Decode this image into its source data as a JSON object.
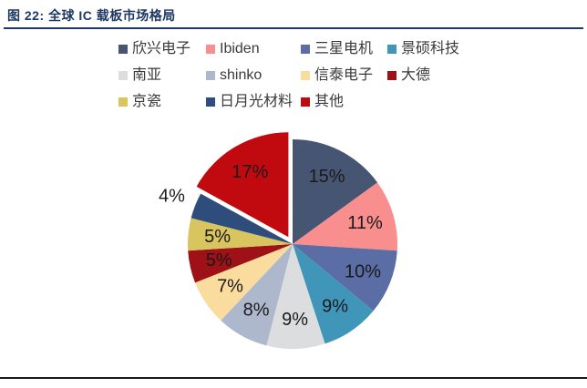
{
  "header": {
    "title": "图 22:  全球 IC 载板市场格局"
  },
  "colors": {
    "title_text": "#1F3864",
    "title_rule": "#1F3864",
    "bottom_rule": "#1a1a1a",
    "slice_label_text": "#1a1a1a",
    "background": "#ffffff"
  },
  "chart_data": {
    "type": "pie",
    "title": "全球 IC 载板市场格局",
    "legend_position": "top",
    "start_angle_deg": 0,
    "direction": "clockwise",
    "units": "%",
    "series": [
      {
        "name": "欣兴电子",
        "value": 15,
        "label": "15%",
        "color": "#465571",
        "exploded": false,
        "label_outside": false
      },
      {
        "name": "Ibiden",
        "value": 11,
        "label": "11%",
        "color": "#F98E8E",
        "exploded": false,
        "label_outside": false
      },
      {
        "name": "三星电机",
        "value": 10,
        "label": "10%",
        "color": "#5B6DA5",
        "exploded": false,
        "label_outside": false
      },
      {
        "name": "景硕科技",
        "value": 9,
        "label": "9%",
        "color": "#3F96B8",
        "exploded": false,
        "label_outside": false
      },
      {
        "name": "南亚",
        "value": 9,
        "label": "9%",
        "color": "#DCDDDF",
        "exploded": false,
        "label_outside": false
      },
      {
        "name": "shinko",
        "value": 8,
        "label": "8%",
        "color": "#AEB8CC",
        "exploded": false,
        "label_outside": false
      },
      {
        "name": "信泰电子",
        "value": 7,
        "label": "7%",
        "color": "#FADC9E",
        "exploded": false,
        "label_outside": false
      },
      {
        "name": "大德",
        "value": 5,
        "label": "5%",
        "color": "#9E1116",
        "exploded": false,
        "label_outside": false
      },
      {
        "name": "京瓷",
        "value": 5,
        "label": "5%",
        "color": "#D8C55F",
        "exploded": false,
        "label_outside": false
      },
      {
        "name": "日月光材料",
        "value": 4,
        "label": "4%",
        "color": "#2E4D7C",
        "exploded": false,
        "label_outside": true
      },
      {
        "name": "其他",
        "value": 17,
        "label": "17%",
        "color": "#C00A0F",
        "exploded": true,
        "label_outside": false
      }
    ]
  }
}
